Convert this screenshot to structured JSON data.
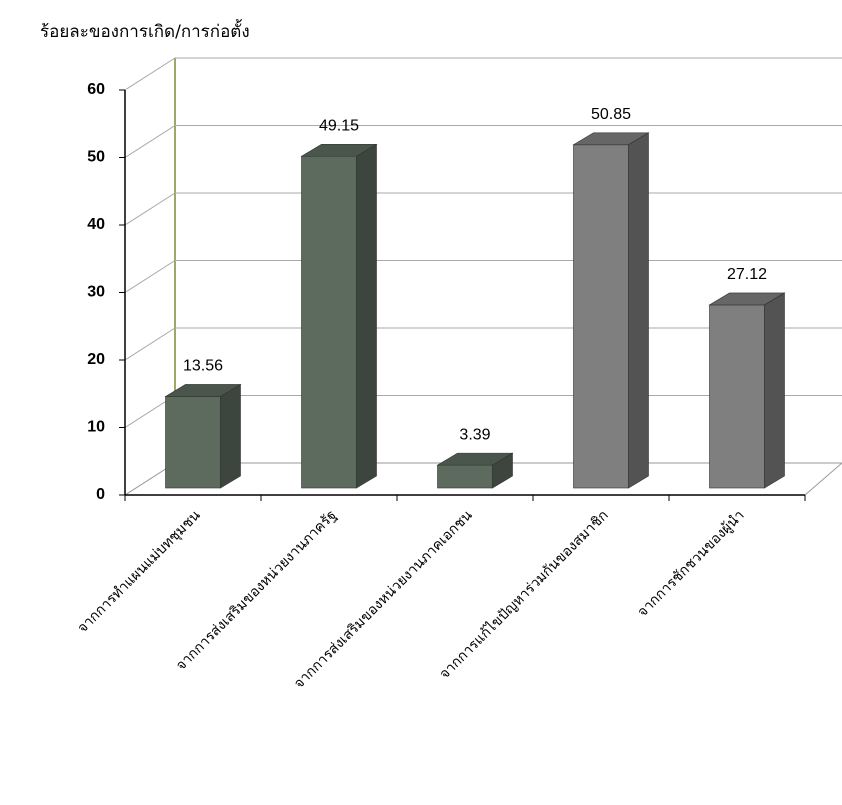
{
  "chart_data": {
    "type": "bar3d",
    "y_axis_label": "ร้อยละของการเกิด/การก่อตั้ง",
    "categories": [
      "จากการทำแผนแม่บทชุมชน",
      "จากการส่งเสริมของหน่วยงานภาครัฐ",
      "จากการส่งเสริมของหน่วยงานภาคเอกชน",
      "จากการแก้ไขปัญหาร่วมกันของสมาชิก",
      "จากการชักชวนของผู้นำ"
    ],
    "values": [
      13.56,
      49.15,
      3.39,
      50.85,
      27.12
    ],
    "colors": [
      "#5d6b5f",
      "#5d6b5f",
      "#5d6b5f",
      "#7f7f7f",
      "#7f7f7f"
    ],
    "ylim": [
      0,
      60
    ],
    "yticks": [
      0,
      10,
      20,
      30,
      40,
      50,
      60
    ],
    "grid": true
  }
}
